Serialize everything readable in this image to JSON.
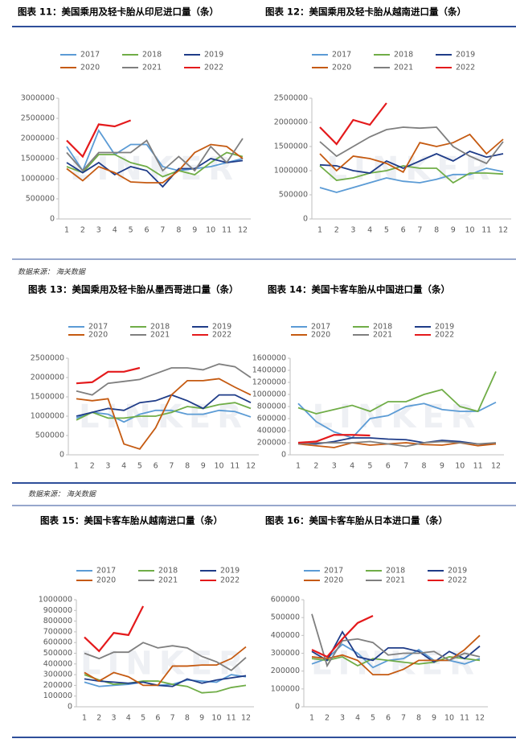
{
  "source": "数据来源： 海关数据",
  "watermark": "LINKER",
  "chart_data": [
    {
      "type": "line",
      "title": "图表 11：美国乘用及轻卡胎从印尼进口量（条）",
      "categories": [
        "1",
        "2",
        "3",
        "4",
        "5",
        "6",
        "7",
        "8",
        "9",
        "10",
        "11",
        "12"
      ],
      "ylim": [
        0,
        3000000
      ],
      "yticks": [
        0,
        500000,
        1000000,
        1500000,
        2000000,
        2500000,
        3000000
      ],
      "series": [
        {
          "name": "2017",
          "color": "#5b9bd5",
          "values": [
            1800000,
            1200000,
            2200000,
            1600000,
            1850000,
            1850000,
            1300000,
            1200000,
            1250000,
            1300000,
            1400000,
            1500000
          ]
        },
        {
          "name": "2018",
          "color": "#70ad47",
          "values": [
            1300000,
            1150000,
            1600000,
            1600000,
            1400000,
            1300000,
            1050000,
            1200000,
            1100000,
            1400000,
            1650000,
            1550000
          ]
        },
        {
          "name": "2019",
          "color": "#1f3c88",
          "values": [
            1400000,
            1150000,
            1400000,
            1100000,
            1300000,
            1200000,
            800000,
            1250000,
            1250000,
            1500000,
            1400000,
            1450000
          ]
        },
        {
          "name": "2020",
          "color": "#c55a11",
          "values": [
            1250000,
            950000,
            1300000,
            1150000,
            920000,
            900000,
            900000,
            1200000,
            1650000,
            1850000,
            1800000,
            1500000
          ]
        },
        {
          "name": "2021",
          "color": "#7f7f7f",
          "values": [
            1650000,
            1200000,
            1650000,
            1650000,
            1650000,
            1950000,
            1200000,
            1550000,
            1200000,
            1800000,
            1400000,
            2000000
          ]
        },
        {
          "name": "2022",
          "color": "#e41a1c",
          "values": [
            1950000,
            1550000,
            2350000,
            2300000,
            2450000,
            null,
            null,
            null,
            null,
            null,
            null,
            null
          ]
        }
      ]
    },
    {
      "type": "line",
      "title": "图表 12：美国乘用及轻卡胎从越南进口量（条）",
      "categories": [
        "1",
        "2",
        "3",
        "4",
        "5",
        "6",
        "7",
        "8",
        "9",
        "10",
        "11",
        "12"
      ],
      "ylim": [
        0,
        2500000
      ],
      "yticks": [
        0,
        500000,
        1000000,
        1500000,
        2000000,
        2500000
      ],
      "series": [
        {
          "name": "2017",
          "color": "#5b9bd5",
          "values": [
            650000,
            550000,
            650000,
            750000,
            850000,
            780000,
            750000,
            820000,
            920000,
            920000,
            1050000,
            980000
          ]
        },
        {
          "name": "2018",
          "color": "#70ad47",
          "values": [
            1100000,
            800000,
            850000,
            950000,
            1000000,
            1100000,
            1050000,
            1050000,
            750000,
            950000,
            950000,
            930000
          ]
        },
        {
          "name": "2019",
          "color": "#1f3c88",
          "values": [
            1120000,
            1100000,
            1000000,
            950000,
            1200000,
            1050000,
            1200000,
            1350000,
            1200000,
            1400000,
            1280000,
            1350000
          ]
        },
        {
          "name": "2020",
          "color": "#c55a11",
          "values": [
            1350000,
            1000000,
            1300000,
            1250000,
            1150000,
            970000,
            1580000,
            1500000,
            1580000,
            1750000,
            1350000,
            1650000
          ]
        },
        {
          "name": "2021",
          "color": "#7f7f7f",
          "values": [
            1600000,
            1300000,
            1500000,
            1700000,
            1850000,
            1900000,
            1880000,
            1900000,
            1500000,
            1300000,
            1150000,
            1600000
          ]
        },
        {
          "name": "2022",
          "color": "#e41a1c",
          "values": [
            1900000,
            1550000,
            2050000,
            1950000,
            2400000,
            null,
            null,
            null,
            null,
            null,
            null,
            null
          ]
        }
      ]
    },
    {
      "type": "line",
      "title": "图表 13：美国乘用及轻卡胎从墨西哥进口量（条）",
      "categories": [
        "1",
        "2",
        "3",
        "4",
        "5",
        "6",
        "7",
        "8",
        "9",
        "10",
        "11",
        "12"
      ],
      "ylim": [
        0,
        2500000
      ],
      "yticks": [
        0,
        500000,
        1000000,
        1500000,
        2000000,
        2500000
      ],
      "series": [
        {
          "name": "2017",
          "color": "#5b9bd5",
          "values": [
            950000,
            1100000,
            1050000,
            850000,
            1050000,
            1150000,
            1150000,
            1050000,
            1050000,
            1150000,
            1120000,
            980000
          ]
        },
        {
          "name": "2018",
          "color": "#70ad47",
          "values": [
            900000,
            1100000,
            950000,
            950000,
            1000000,
            1000000,
            1100000,
            1250000,
            1200000,
            1300000,
            1350000,
            1200000
          ]
        },
        {
          "name": "2019",
          "color": "#1f3c88",
          "values": [
            1000000,
            1100000,
            1200000,
            1150000,
            1350000,
            1400000,
            1550000,
            1400000,
            1200000,
            1550000,
            1550000,
            1350000
          ]
        },
        {
          "name": "2020",
          "color": "#c55a11",
          "values": [
            1450000,
            1400000,
            1450000,
            280000,
            150000,
            700000,
            1550000,
            1920000,
            1920000,
            1970000,
            1750000,
            1550000
          ]
        },
        {
          "name": "2021",
          "color": "#7f7f7f",
          "values": [
            1650000,
            1550000,
            1850000,
            1900000,
            1950000,
            2100000,
            2250000,
            2250000,
            2200000,
            2350000,
            2280000,
            2000000
          ]
        },
        {
          "name": "2022",
          "color": "#e41a1c",
          "values": [
            1850000,
            1880000,
            2150000,
            2150000,
            2250000,
            null,
            null,
            null,
            null,
            null,
            null,
            null
          ]
        }
      ]
    },
    {
      "type": "line",
      "title": "图表 14：美国卡客车胎从中国进口量（条）",
      "categories": [
        "1",
        "2",
        "3",
        "4",
        "5",
        "6",
        "7",
        "8",
        "9",
        "10",
        "11",
        "12"
      ],
      "ylim": [
        0,
        1600000
      ],
      "yticks": [
        0,
        200000,
        400000,
        600000,
        800000,
        1000000,
        1200000,
        1400000,
        1600000
      ],
      "series": [
        {
          "name": "2017",
          "color": "#5b9bd5",
          "values": [
            850000,
            550000,
            380000,
            280000,
            600000,
            650000,
            800000,
            850000,
            750000,
            720000,
            720000,
            870000
          ]
        },
        {
          "name": "2018",
          "color": "#70ad47",
          "values": [
            780000,
            680000,
            750000,
            820000,
            720000,
            880000,
            880000,
            1000000,
            1080000,
            800000,
            720000,
            1380000
          ]
        },
        {
          "name": "2019",
          "color": "#1f3c88",
          "values": [
            200000,
            180000,
            220000,
            280000,
            280000,
            260000,
            250000,
            200000,
            240000,
            220000,
            180000,
            180000
          ]
        },
        {
          "name": "2020",
          "color": "#c55a11",
          "values": [
            180000,
            150000,
            120000,
            200000,
            160000,
            180000,
            200000,
            170000,
            160000,
            200000,
            150000,
            180000
          ]
        },
        {
          "name": "2021",
          "color": "#7f7f7f",
          "values": [
            180000,
            200000,
            200000,
            200000,
            220000,
            180000,
            140000,
            200000,
            220000,
            200000,
            180000,
            200000
          ]
        },
        {
          "name": "2022",
          "color": "#e41a1c",
          "values": [
            200000,
            220000,
            330000,
            330000,
            320000,
            null,
            null,
            null,
            null,
            null,
            null,
            null
          ]
        }
      ]
    },
    {
      "type": "line",
      "title": "图表 15：美国卡客车胎从越南进口量（条）",
      "categories": [
        "1",
        "2",
        "3",
        "4",
        "5",
        "6",
        "7",
        "8",
        "9",
        "10",
        "11",
        "12"
      ],
      "ylim": [
        0,
        1000000
      ],
      "yticks": [
        0,
        100000,
        200000,
        300000,
        400000,
        500000,
        600000,
        700000,
        800000,
        900000,
        1000000
      ],
      "series": [
        {
          "name": "2017",
          "color": "#5b9bd5",
          "values": [
            230000,
            190000,
            200000,
            210000,
            230000,
            200000,
            210000,
            250000,
            240000,
            230000,
            300000,
            280000
          ]
        },
        {
          "name": "2018",
          "color": "#70ad47",
          "values": [
            300000,
            250000,
            210000,
            220000,
            240000,
            240000,
            210000,
            190000,
            130000,
            140000,
            180000,
            200000
          ]
        },
        {
          "name": "2019",
          "color": "#1f3c88",
          "values": [
            260000,
            240000,
            230000,
            220000,
            230000,
            200000,
            190000,
            260000,
            220000,
            250000,
            270000,
            290000
          ]
        },
        {
          "name": "2020",
          "color": "#c55a11",
          "values": [
            320000,
            240000,
            320000,
            280000,
            200000,
            200000,
            380000,
            380000,
            390000,
            390000,
            450000,
            560000
          ]
        },
        {
          "name": "2021",
          "color": "#7f7f7f",
          "values": [
            500000,
            450000,
            510000,
            510000,
            600000,
            550000,
            570000,
            550000,
            470000,
            420000,
            340000,
            460000
          ]
        },
        {
          "name": "2022",
          "color": "#e41a1c",
          "values": [
            650000,
            520000,
            690000,
            670000,
            940000,
            null,
            null,
            null,
            null,
            null,
            null,
            null
          ]
        }
      ]
    },
    {
      "type": "line",
      "title": "图表 16：美国卡客车胎从日本进口量（条）",
      "categories": [
        "1",
        "2",
        "3",
        "4",
        "5",
        "6",
        "7",
        "8",
        "9",
        "10",
        "11",
        "12"
      ],
      "ylim": [
        0,
        600000
      ],
      "yticks": [
        0,
        100000,
        200000,
        300000,
        400000,
        500000,
        600000
      ],
      "series": [
        {
          "name": "2017",
          "color": "#5b9bd5",
          "values": [
            240000,
            270000,
            350000,
            300000,
            220000,
            260000,
            270000,
            320000,
            260000,
            260000,
            240000,
            270000
          ]
        },
        {
          "name": "2018",
          "color": "#70ad47",
          "values": [
            270000,
            260000,
            280000,
            230000,
            270000,
            260000,
            250000,
            240000,
            250000,
            280000,
            270000,
            260000
          ]
        },
        {
          "name": "2019",
          "color": "#1f3c88",
          "values": [
            310000,
            260000,
            420000,
            280000,
            260000,
            330000,
            330000,
            310000,
            250000,
            310000,
            270000,
            340000
          ]
        },
        {
          "name": "2020",
          "color": "#c55a11",
          "values": [
            280000,
            270000,
            290000,
            260000,
            180000,
            180000,
            210000,
            260000,
            260000,
            260000,
            320000,
            400000
          ]
        },
        {
          "name": "2021",
          "color": "#7f7f7f",
          "values": [
            520000,
            230000,
            370000,
            380000,
            360000,
            290000,
            300000,
            300000,
            310000,
            260000,
            300000,
            280000
          ]
        },
        {
          "name": "2022",
          "color": "#e41a1c",
          "values": [
            320000,
            280000,
            380000,
            470000,
            510000,
            null,
            null,
            null,
            null,
            null,
            null,
            null
          ]
        }
      ]
    }
  ]
}
